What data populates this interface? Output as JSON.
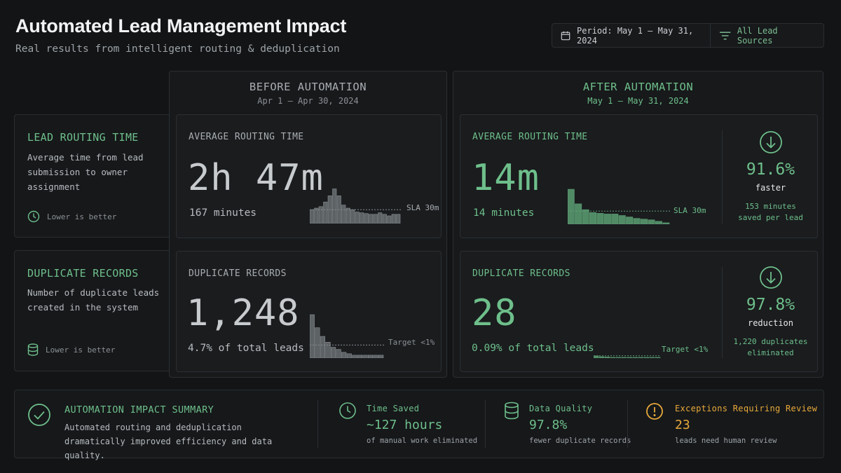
{
  "header": {
    "title": "Automated Lead Management Impact",
    "subtitle": "Real results from intelligent routing & deduplication",
    "period": "Period: May 1 – May 31, 2024",
    "sources": "All Lead Sources"
  },
  "rows": {
    "routing": {
      "heading": "LEAD ROUTING TIME",
      "description": "Average time from lead submission to owner assignment",
      "footnote": "Lower is better",
      "icon": "clock-icon"
    },
    "duplicates": {
      "heading": "DUPLICATE RECORDS",
      "description": "Number of duplicate leads created in the system",
      "footnote": "Lower is better",
      "icon": "database-icon"
    }
  },
  "before": {
    "heading": "BEFORE AUTOMATION",
    "dates": "Apr 1 – Apr 30, 2024",
    "routing": {
      "label": "AVERAGE ROUTING TIME",
      "value": "2h 47m",
      "sub": "167 minutes",
      "ref_label": "SLA 30m"
    },
    "duplicates": {
      "label": "DUPLICATE RECORDS",
      "value": "1,248",
      "sub": "4.7% of total leads",
      "ref_label": "Target <1%"
    }
  },
  "after": {
    "heading": "AFTER AUTOMATION",
    "dates": "May 1 – May 31, 2024",
    "routing": {
      "label": "AVERAGE ROUTING TIME",
      "value": "14m",
      "sub": "14 minutes",
      "ref_label": "SLA 30m",
      "change_pct": "91.6%",
      "change_word": "faster",
      "note_line1": "153 minutes",
      "note_line2": "saved per lead"
    },
    "duplicates": {
      "label": "DUPLICATE RECORDS",
      "value": "28",
      "sub": "0.09% of total leads",
      "ref_label": "Target <1%",
      "change_pct": "97.8%",
      "change_word": "reduction",
      "note_line1": "1,220 duplicates",
      "note_line2": "eliminated"
    }
  },
  "summary": {
    "heading": "AUTOMATION IMPACT SUMMARY",
    "text": "Automated routing and deduplication dramatically improved efficiency and data quality.",
    "stats": [
      {
        "label": "Time Saved",
        "value": "~127 hours",
        "note": "of manual work eliminated",
        "icon": "clock-icon"
      },
      {
        "label": "Data Quality",
        "value": "97.8%",
        "note": "fewer duplicate records",
        "icon": "database-icon"
      },
      {
        "label": "Exceptions Requiring Review",
        "value": "23",
        "note": "leads need human review",
        "icon": "alert-icon"
      }
    ]
  },
  "colors": {
    "accent_green": "#6ebf8b",
    "warning_amber": "#e8a93a",
    "bar_gray": "#6a6e72"
  },
  "chart_data": [
    {
      "type": "bar",
      "name": "before-routing-sparkline",
      "values": [
        18,
        20,
        22,
        28,
        36,
        45,
        36,
        24,
        20,
        18,
        15,
        14,
        13,
        12,
        12,
        14,
        12,
        10,
        12,
        12
      ],
      "reference_line": 18,
      "ylim": [
        0,
        50
      ]
    },
    {
      "type": "bar",
      "name": "before-duplicates-sparkline",
      "values": [
        60,
        42,
        30,
        22,
        15,
        12,
        8,
        6,
        4,
        4,
        4,
        4,
        4,
        4
      ],
      "reference_line": 18,
      "ylim": [
        0,
        62
      ]
    },
    {
      "type": "bar",
      "name": "after-routing-sparkline",
      "values": [
        48,
        28,
        20,
        16,
        15,
        14,
        14,
        12,
        10,
        8,
        7,
        6,
        4,
        2
      ],
      "reference_line": 18,
      "ylim": [
        0,
        50
      ]
    },
    {
      "type": "bar",
      "name": "after-duplicates-sparkline",
      "values": [
        8,
        5,
        4,
        2,
        2,
        2,
        1,
        1,
        1,
        1,
        1,
        1
      ],
      "reference_line": 8,
      "ylim": [
        0,
        60
      ]
    }
  ]
}
